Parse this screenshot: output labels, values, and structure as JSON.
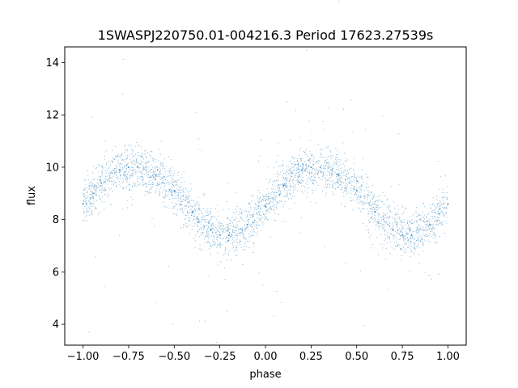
{
  "chart_data": {
    "type": "scatter",
    "title": "1SWASPJ220750.01-004216.3 Period 17623.27539s",
    "xlabel": "phase",
    "ylabel": "flux",
    "xlim": [
      -1.1,
      1.1
    ],
    "ylim": [
      3.2,
      14.6
    ],
    "xticks": [
      -1.0,
      -0.75,
      -0.5,
      -0.25,
      0.0,
      0.25,
      0.5,
      0.75,
      1.0
    ],
    "xtick_labels": [
      "−1.00",
      "−0.75",
      "−0.50",
      "−0.25",
      "0.00",
      "0.25",
      "0.50",
      "0.75",
      "1.00"
    ],
    "yticks": [
      4,
      6,
      8,
      10,
      12,
      14
    ],
    "ytick_labels": [
      "4",
      "6",
      "8",
      "10",
      "12",
      "14"
    ],
    "grid": false,
    "legend": "none",
    "point_color": "#1f77b4",
    "series": [
      {
        "x": [
          -1.0,
          -0.9,
          -0.8,
          -0.75,
          -0.7,
          -0.6,
          -0.5,
          -0.4,
          -0.3,
          -0.25,
          -0.2,
          -0.1,
          0.0,
          0.1,
          0.2,
          0.25,
          0.3,
          0.4,
          0.5,
          0.6,
          0.7,
          0.75,
          0.8,
          0.9,
          1.0
        ],
        "y": [
          8.6,
          9.4,
          9.9,
          10.0,
          10.0,
          9.7,
          9.1,
          8.3,
          7.6,
          7.4,
          7.4,
          7.8,
          8.5,
          9.3,
          9.9,
          10.0,
          10.0,
          9.7,
          9.1,
          8.3,
          7.6,
          7.4,
          7.4,
          7.8,
          8.6
        ]
      }
    ]
  }
}
